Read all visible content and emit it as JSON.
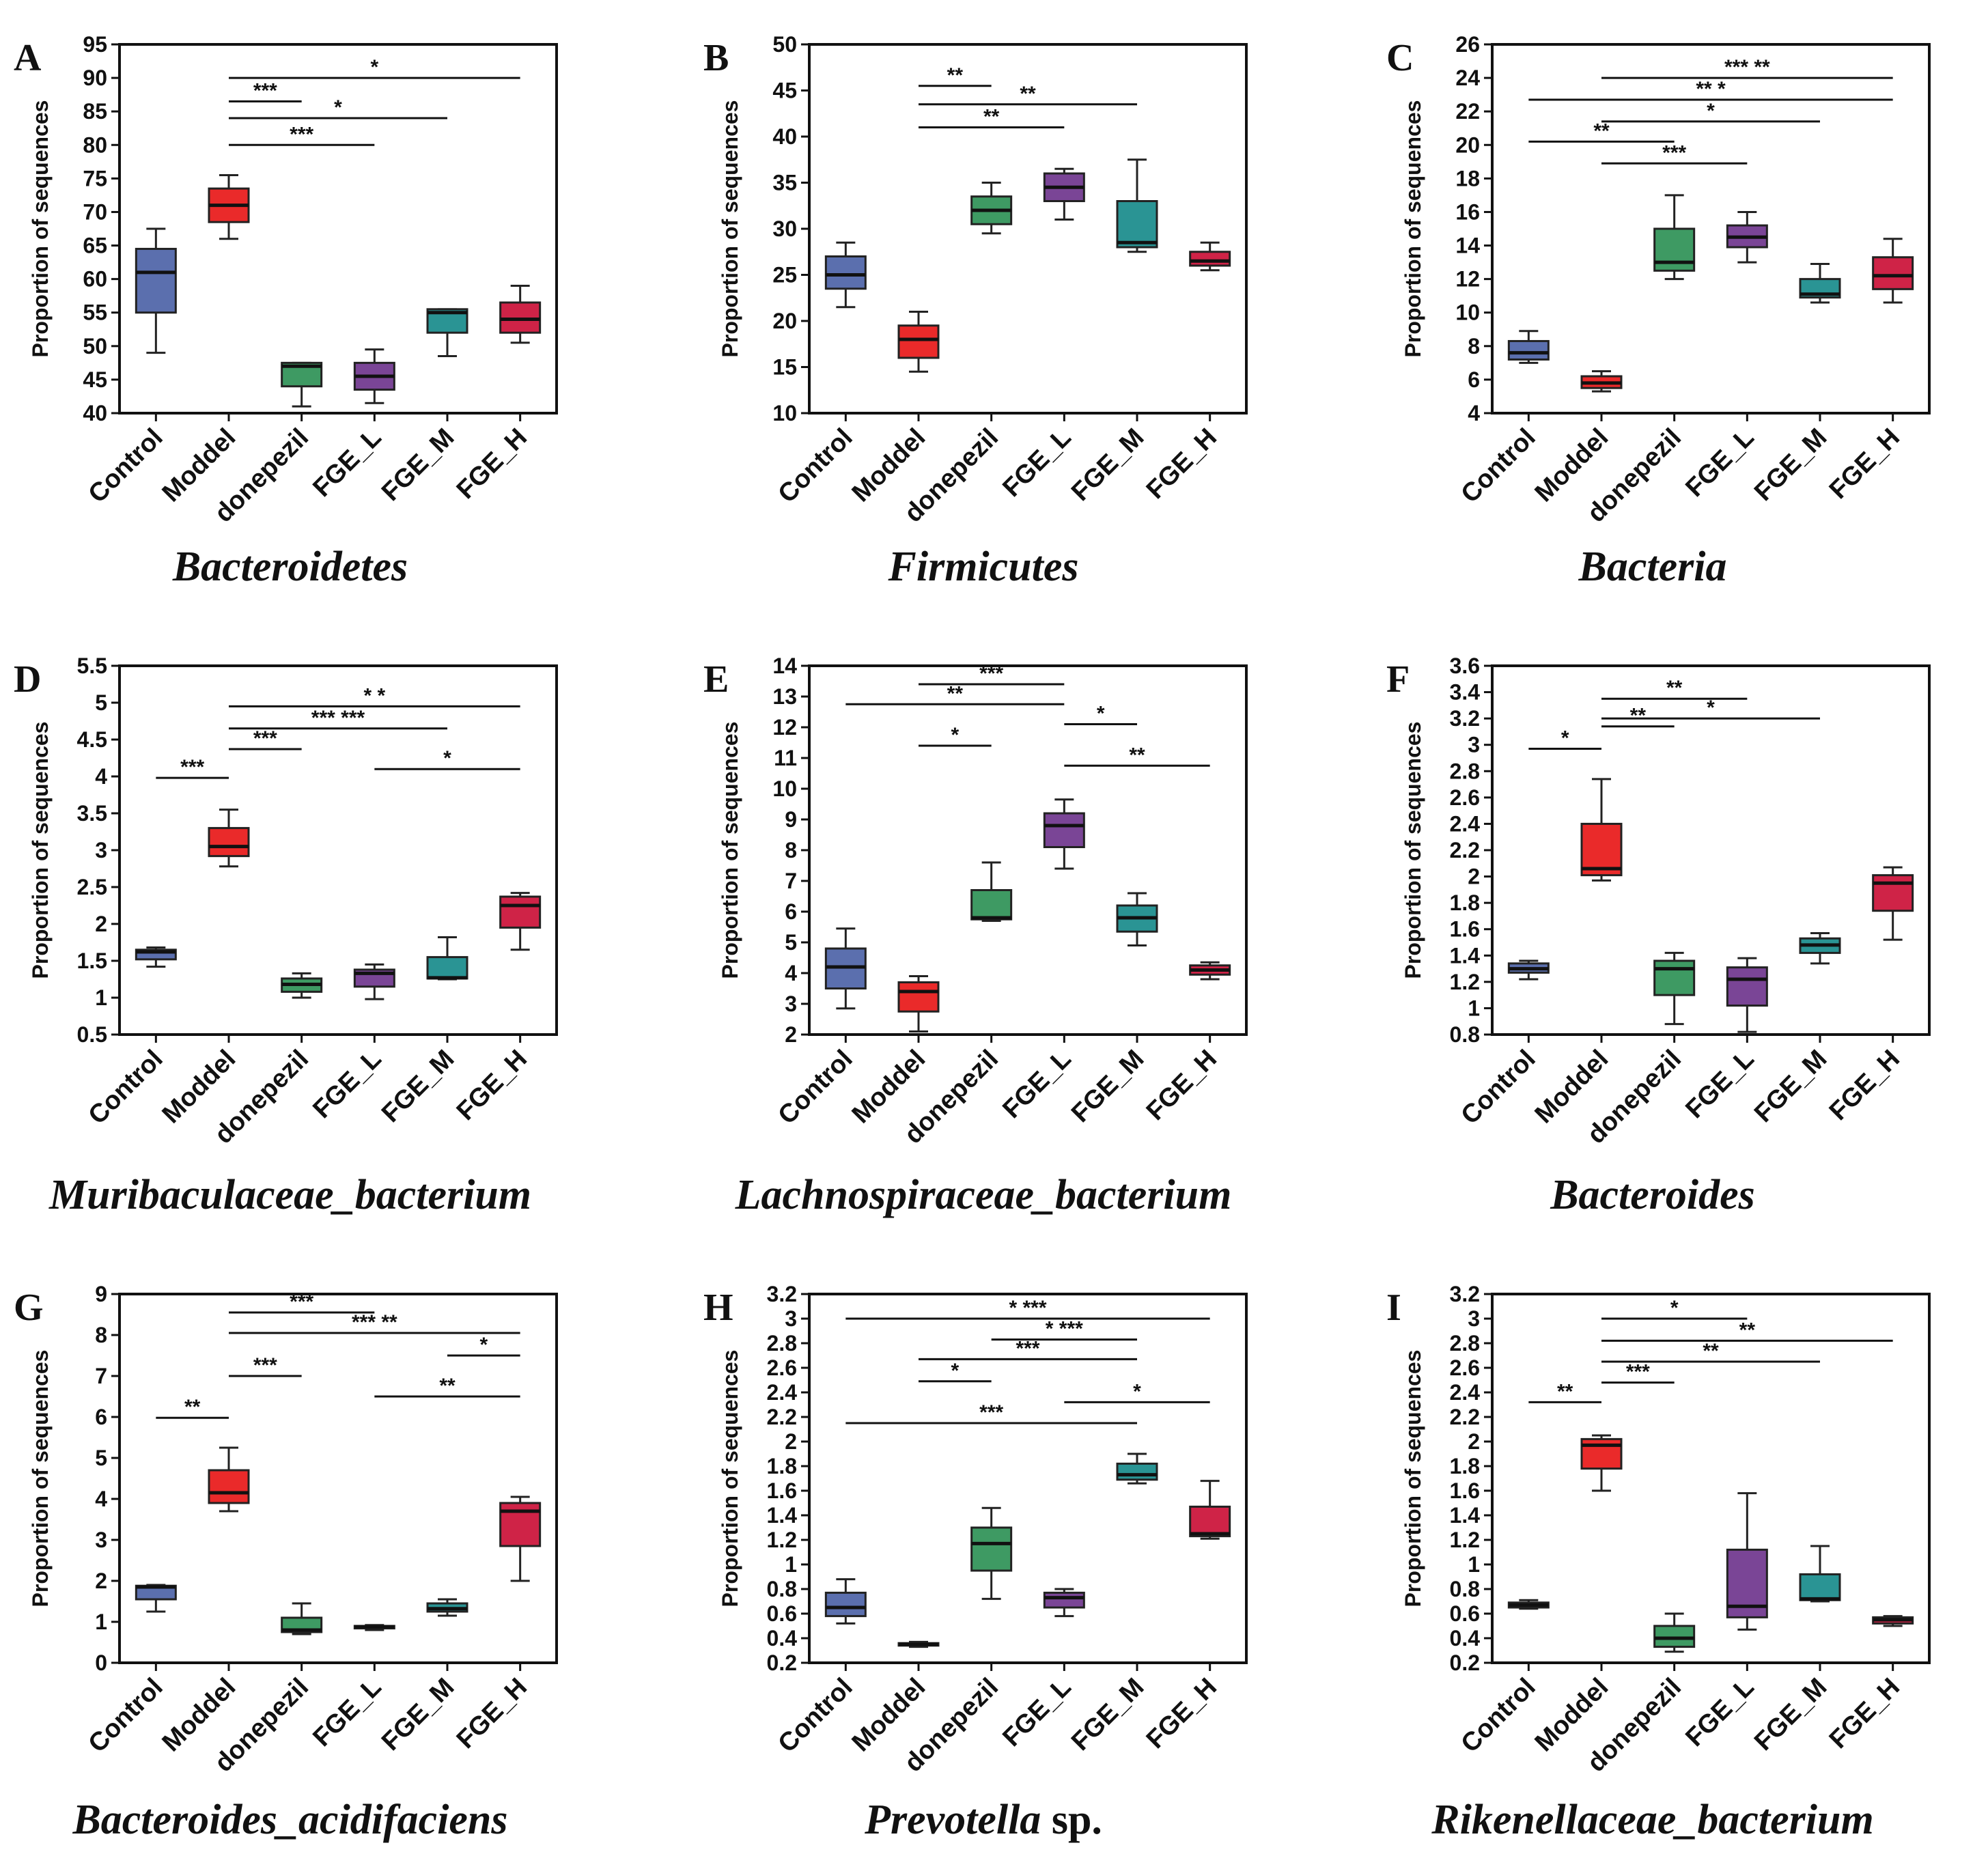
{
  "colors": {
    "Control": "#5b6fae",
    "Moddel": "#ea2a2a",
    "donepezil": "#3e9a63",
    "FGE_L": "#7a4596",
    "FGE_M": "#2a9494",
    "FGE_H": "#cf2347"
  },
  "chart_data": [
    {
      "type": "box",
      "panel_label": "A",
      "title": "Bacteroidetes",
      "ylabel": "Proportion of sequences",
      "ylim": [
        40,
        95
      ],
      "ticks": [
        40,
        45,
        50,
        55,
        60,
        65,
        70,
        75,
        80,
        85,
        90,
        95
      ],
      "categories": [
        "Control",
        "Moddel",
        "donepezil",
        "FGE_L",
        "FGE_M",
        "FGE_H"
      ],
      "boxes": [
        {
          "min": 49,
          "q1": 55,
          "median": 61,
          "q3": 64.5,
          "max": 67.5
        },
        {
          "min": 66,
          "q1": 68.5,
          "median": 71,
          "q3": 73.5,
          "max": 75.5
        },
        {
          "min": 41,
          "q1": 44,
          "median": 47,
          "q3": 47.5,
          "max": 47.5
        },
        {
          "min": 41.5,
          "q1": 43.5,
          "median": 45.5,
          "q3": 47.5,
          "max": 49.5
        },
        {
          "min": 48.5,
          "q1": 52,
          "median": 55,
          "q3": 55.5,
          "max": 55.5
        },
        {
          "min": 50.5,
          "q1": 52,
          "median": 54,
          "q3": 56.5,
          "max": 59
        }
      ],
      "significance": [
        {
          "from": 1,
          "to": 5,
          "y": 90,
          "label": "*"
        },
        {
          "from": 1,
          "to": 2,
          "y": 86.5,
          "label": "***"
        },
        {
          "from": 1,
          "to": 4,
          "y": 84,
          "label": "*"
        },
        {
          "from": 1,
          "to": 3,
          "y": 80,
          "label": "***"
        }
      ]
    },
    {
      "type": "box",
      "panel_label": "B",
      "title": "Firmicutes",
      "ylabel": "Proportion of sequences",
      "ylim": [
        10,
        50
      ],
      "ticks": [
        10,
        15,
        20,
        25,
        30,
        35,
        40,
        45,
        50
      ],
      "categories": [
        "Control",
        "Moddel",
        "donepezil",
        "FGE_L",
        "FGE_M",
        "FGE_H"
      ],
      "boxes": [
        {
          "min": 21.5,
          "q1": 23.5,
          "median": 25,
          "q3": 27,
          "max": 28.5
        },
        {
          "min": 14.5,
          "q1": 16,
          "median": 18,
          "q3": 19.5,
          "max": 21
        },
        {
          "min": 29.5,
          "q1": 30.5,
          "median": 32,
          "q3": 33.5,
          "max": 35
        },
        {
          "min": 31,
          "q1": 33,
          "median": 34.5,
          "q3": 36,
          "max": 36.5
        },
        {
          "min": 27.5,
          "q1": 28,
          "median": 28.5,
          "q3": 33,
          "max": 37.5
        },
        {
          "min": 25.5,
          "q1": 26,
          "median": 26.5,
          "q3": 27.5,
          "max": 28.5
        }
      ],
      "significance": [
        {
          "from": 1,
          "to": 2,
          "y": 45.5,
          "label": "**"
        },
        {
          "from": 1,
          "to": 4,
          "y": 43.5,
          "label": "**"
        },
        {
          "from": 1,
          "to": 3,
          "y": 41,
          "label": "**"
        }
      ]
    },
    {
      "type": "box",
      "panel_label": "C",
      "title": "Bacteria",
      "ylabel": "Proportion of sequences",
      "ylim": [
        4,
        26
      ],
      "ticks": [
        4,
        6,
        8,
        10,
        12,
        14,
        16,
        18,
        20,
        22,
        24,
        26
      ],
      "categories": [
        "Control",
        "Moddel",
        "donepezil",
        "FGE_L",
        "FGE_M",
        "FGE_H"
      ],
      "boxes": [
        {
          "min": 7,
          "q1": 7.2,
          "median": 7.6,
          "q3": 8.3,
          "max": 8.9
        },
        {
          "min": 5.3,
          "q1": 5.5,
          "median": 5.8,
          "q3": 6.2,
          "max": 6.5
        },
        {
          "min": 12,
          "q1": 12.5,
          "median": 13,
          "q3": 15,
          "max": 17
        },
        {
          "min": 13,
          "q1": 13.9,
          "median": 14.5,
          "q3": 15.2,
          "max": 16
        },
        {
          "min": 10.6,
          "q1": 10.9,
          "median": 11.1,
          "q3": 12,
          "max": 12.9
        },
        {
          "min": 10.6,
          "q1": 11.4,
          "median": 12.2,
          "q3": 13.3,
          "max": 14.4
        }
      ],
      "significance": [
        {
          "from": 1,
          "to": 5,
          "y": 24,
          "label": "***    **"
        },
        {
          "from": 0,
          "to": 5,
          "y": 22.7,
          "label": "**          *"
        },
        {
          "from": 1,
          "to": 4,
          "y": 21.4,
          "label": "*"
        },
        {
          "from": 0,
          "to": 2,
          "y": 20.2,
          "label": "**"
        },
        {
          "from": 1,
          "to": 3,
          "y": 18.9,
          "label": "***"
        }
      ]
    },
    {
      "type": "box",
      "panel_label": "D",
      "title": "Muribaculaceae_bacterium",
      "ylabel": "Proportion of sequences",
      "ylim": [
        0.5,
        5.5
      ],
      "ticks": [
        0.5,
        1,
        1.5,
        2,
        2.5,
        3,
        3.5,
        4,
        4.5,
        5,
        5.5
      ],
      "tick_labels": [
        "0.5",
        "1",
        "1.5",
        "2",
        "2.5",
        "3",
        "3.5",
        "4",
        "4.5",
        "5",
        "5.5"
      ],
      "categories": [
        "Control",
        "Moddel",
        "donepezil",
        "FGE_L",
        "FGE_M",
        "FGE_H"
      ],
      "boxes": [
        {
          "min": 1.42,
          "q1": 1.52,
          "median": 1.62,
          "q3": 1.65,
          "max": 1.68
        },
        {
          "min": 2.78,
          "q1": 2.92,
          "median": 3.05,
          "q3": 3.3,
          "max": 3.55
        },
        {
          "min": 1,
          "q1": 1.08,
          "median": 1.18,
          "q3": 1.26,
          "max": 1.33
        },
        {
          "min": 0.98,
          "q1": 1.15,
          "median": 1.33,
          "q3": 1.38,
          "max": 1.45
        },
        {
          "min": 1.25,
          "q1": 1.26,
          "median": 1.27,
          "q3": 1.55,
          "max": 1.82
        },
        {
          "min": 1.65,
          "q1": 1.95,
          "median": 2.25,
          "q3": 2.37,
          "max": 2.42
        }
      ],
      "significance": [
        {
          "from": 1,
          "to": 5,
          "y": 4.95,
          "label": "*     *"
        },
        {
          "from": 1,
          "to": 4,
          "y": 4.65,
          "label": "*** ***"
        },
        {
          "from": 1,
          "to": 2,
          "y": 4.37,
          "label": "***"
        },
        {
          "from": 3,
          "to": 5,
          "y": 4.1,
          "label": "*"
        },
        {
          "from": 0,
          "to": 1,
          "y": 3.98,
          "label": "***"
        }
      ]
    },
    {
      "type": "box",
      "panel_label": "E",
      "title": "Lachnospiraceae_bacterium",
      "ylabel": "Proportion of sequences",
      "ylim": [
        2,
        14
      ],
      "ticks": [
        2,
        3,
        4,
        5,
        6,
        7,
        8,
        9,
        10,
        11,
        12,
        13,
        14
      ],
      "categories": [
        "Control",
        "Moddel",
        "donepezil",
        "FGE_L",
        "FGE_M",
        "FGE_H"
      ],
      "boxes": [
        {
          "min": 2.85,
          "q1": 3.5,
          "median": 4.2,
          "q3": 4.8,
          "max": 5.45
        },
        {
          "min": 2.1,
          "q1": 2.75,
          "median": 3.4,
          "q3": 3.7,
          "max": 3.9
        },
        {
          "min": 5.7,
          "q1": 5.75,
          "median": 5.8,
          "q3": 6.7,
          "max": 7.6
        },
        {
          "min": 7.4,
          "q1": 8.1,
          "median": 8.8,
          "q3": 9.2,
          "max": 9.65
        },
        {
          "min": 4.9,
          "q1": 5.35,
          "median": 5.8,
          "q3": 6.2,
          "max": 6.6
        },
        {
          "min": 3.8,
          "q1": 3.95,
          "median": 4.1,
          "q3": 4.25,
          "max": 4.35
        }
      ],
      "significance": [
        {
          "from": 1,
          "to": 3,
          "y": 13.4,
          "label": "***"
        },
        {
          "from": 0,
          "to": 3,
          "y": 12.75,
          "label": "**"
        },
        {
          "from": 3,
          "to": 4,
          "y": 12.1,
          "label": "*"
        },
        {
          "from": 1,
          "to": 2,
          "y": 11.4,
          "label": "*"
        },
        {
          "from": 3,
          "to": 5,
          "y": 10.75,
          "label": "**"
        }
      ]
    },
    {
      "type": "box",
      "panel_label": "F",
      "title": "Bacteroides",
      "ylabel": "Proportion of sequences",
      "ylim": [
        0.8,
        3.6
      ],
      "ticks": [
        0.8,
        1,
        1.2,
        1.4,
        1.6,
        1.8,
        2,
        2.2,
        2.4,
        2.6,
        2.8,
        3,
        3.2,
        3.4,
        3.6
      ],
      "tick_labels": [
        "0.8",
        "1",
        "1.2",
        "1.4",
        "1.6",
        "1.8",
        "2",
        "2.2",
        "2.4",
        "2.6",
        "2.8",
        "3",
        "3.2",
        "3.4",
        "3.6"
      ],
      "categories": [
        "Control",
        "Moddel",
        "donepezil",
        "FGE_L",
        "FGE_M",
        "FGE_H"
      ],
      "boxes": [
        {
          "min": 1.22,
          "q1": 1.27,
          "median": 1.3,
          "q3": 1.34,
          "max": 1.36
        },
        {
          "min": 1.97,
          "q1": 2.01,
          "median": 2.06,
          "q3": 2.4,
          "max": 2.74
        },
        {
          "min": 0.88,
          "q1": 1.1,
          "median": 1.3,
          "q3": 1.36,
          "max": 1.42
        },
        {
          "min": 0.82,
          "q1": 1.02,
          "median": 1.22,
          "q3": 1.31,
          "max": 1.38
        },
        {
          "min": 1.34,
          "q1": 1.42,
          "median": 1.48,
          "q3": 1.53,
          "max": 1.57
        },
        {
          "min": 1.52,
          "q1": 1.74,
          "median": 1.95,
          "q3": 2.01,
          "max": 2.07
        }
      ],
      "significance": [
        {
          "from": 1,
          "to": 3,
          "y": 3.35,
          "label": "**"
        },
        {
          "from": 1,
          "to": 4,
          "y": 3.2,
          "label": "*"
        },
        {
          "from": 1,
          "to": 2,
          "y": 3.14,
          "label": "**"
        },
        {
          "from": 0,
          "to": 1,
          "y": 2.97,
          "label": "*"
        }
      ]
    },
    {
      "type": "box",
      "panel_label": "G",
      "title": "Bacteroides_acidifaciens",
      "ylabel": "Proportion of sequences",
      "ylim": [
        0,
        9
      ],
      "ticks": [
        0,
        1,
        2,
        3,
        4,
        5,
        6,
        7,
        8,
        9
      ],
      "categories": [
        "Control",
        "Moddel",
        "donepezil",
        "FGE_L",
        "FGE_M",
        "FGE_H"
      ],
      "boxes": [
        {
          "min": 1.25,
          "q1": 1.55,
          "median": 1.85,
          "q3": 1.88,
          "max": 1.9
        },
        {
          "min": 3.7,
          "q1": 3.9,
          "median": 4.15,
          "q3": 4.7,
          "max": 5.25
        },
        {
          "min": 0.7,
          "q1": 0.75,
          "median": 0.8,
          "q3": 1.1,
          "max": 1.45
        },
        {
          "min": 0.8,
          "q1": 0.84,
          "median": 0.88,
          "q3": 0.9,
          "max": 0.92
        },
        {
          "min": 1.15,
          "q1": 1.25,
          "median": 1.32,
          "q3": 1.45,
          "max": 1.55
        },
        {
          "min": 2,
          "q1": 2.85,
          "median": 3.7,
          "q3": 3.9,
          "max": 4.05
        }
      ],
      "significance": [
        {
          "from": 1,
          "to": 3,
          "y": 8.55,
          "label": "***"
        },
        {
          "from": 1,
          "to": 5,
          "y": 8.05,
          "label": "***          **"
        },
        {
          "from": 4,
          "to": 5,
          "y": 7.5,
          "label": "*"
        },
        {
          "from": 1,
          "to": 2,
          "y": 7,
          "label": "***"
        },
        {
          "from": 3,
          "to": 5,
          "y": 6.5,
          "label": "**"
        },
        {
          "from": 0,
          "to": 1,
          "y": 5.98,
          "label": "**"
        }
      ]
    },
    {
      "type": "box",
      "panel_label": "H",
      "title": "Prevotella",
      "title_suffix": "sp.",
      "ylabel": "Proportion of sequences",
      "ylim": [
        0.2,
        3.2
      ],
      "ticks": [
        0.2,
        0.4,
        0.6,
        0.8,
        1,
        1.2,
        1.4,
        1.6,
        1.8,
        2,
        2.2,
        2.4,
        2.6,
        2.8,
        3,
        3.2
      ],
      "tick_labels": [
        "0.2",
        "0.4",
        "0.6",
        "0.8",
        "1",
        "1.2",
        "1.4",
        "1.6",
        "1.8",
        "2",
        "2.2",
        "2.4",
        "2.6",
        "2.8",
        "3",
        "3.2"
      ],
      "categories": [
        "Control",
        "Moddel",
        "donepezil",
        "FGE_L",
        "FGE_M",
        "FGE_H"
      ],
      "boxes": [
        {
          "min": 0.52,
          "q1": 0.58,
          "median": 0.65,
          "q3": 0.77,
          "max": 0.88
        },
        {
          "min": 0.33,
          "q1": 0.34,
          "median": 0.35,
          "q3": 0.36,
          "max": 0.37
        },
        {
          "min": 0.72,
          "q1": 0.95,
          "median": 1.17,
          "q3": 1.3,
          "max": 1.46
        },
        {
          "min": 0.58,
          "q1": 0.65,
          "median": 0.73,
          "q3": 0.77,
          "max": 0.8
        },
        {
          "min": 1.66,
          "q1": 1.69,
          "median": 1.73,
          "q3": 1.82,
          "max": 1.9
        },
        {
          "min": 1.21,
          "q1": 1.23,
          "median": 1.25,
          "q3": 1.47,
          "max": 1.68
        }
      ],
      "significance": [
        {
          "from": 0,
          "to": 5,
          "y": 3.0,
          "label": "*   ***"
        },
        {
          "from": 2,
          "to": 4,
          "y": 2.83,
          "label": "*   ***"
        },
        {
          "from": 1,
          "to": 4,
          "y": 2.67,
          "label": "***"
        },
        {
          "from": 1,
          "to": 2,
          "y": 2.49,
          "label": "*"
        },
        {
          "from": 3,
          "to": 5,
          "y": 2.32,
          "label": "*"
        },
        {
          "from": 0,
          "to": 4,
          "y": 2.15,
          "label": "***"
        }
      ]
    },
    {
      "type": "box",
      "panel_label": "I",
      "title": "Rikenellaceae_bacterium",
      "ylabel": "Proportion of sequences",
      "ylim": [
        0.2,
        3.2
      ],
      "ticks": [
        0.2,
        0.4,
        0.6,
        0.8,
        1,
        1.2,
        1.4,
        1.6,
        1.8,
        2,
        2.2,
        2.4,
        2.6,
        2.8,
        3,
        3.2
      ],
      "tick_labels": [
        "0.2",
        "0.4",
        "0.6",
        "0.8",
        "1",
        "1.2",
        "1.4",
        "1.6",
        "1.8",
        "2",
        "2.2",
        "2.4",
        "2.6",
        "2.8",
        "3",
        "3.2"
      ],
      "categories": [
        "Control",
        "Moddel",
        "donepezil",
        "FGE_L",
        "FGE_M",
        "FGE_H"
      ],
      "boxes": [
        {
          "min": 0.64,
          "q1": 0.65,
          "median": 0.67,
          "q3": 0.69,
          "max": 0.71
        },
        {
          "min": 1.6,
          "q1": 1.78,
          "median": 1.97,
          "q3": 2.02,
          "max": 2.05
        },
        {
          "min": 0.29,
          "q1": 0.33,
          "median": 0.4,
          "q3": 0.5,
          "max": 0.6
        },
        {
          "min": 0.47,
          "q1": 0.57,
          "median": 0.66,
          "q3": 1.12,
          "max": 1.58
        },
        {
          "min": 0.7,
          "q1": 0.71,
          "median": 0.72,
          "q3": 0.92,
          "max": 1.15
        },
        {
          "min": 0.5,
          "q1": 0.52,
          "median": 0.55,
          "q3": 0.57,
          "max": 0.58
        }
      ],
      "significance": [
        {
          "from": 1,
          "to": 3,
          "y": 3.0,
          "label": "*"
        },
        {
          "from": 1,
          "to": 5,
          "y": 2.82,
          "label": "**"
        },
        {
          "from": 1,
          "to": 4,
          "y": 2.65,
          "label": "**"
        },
        {
          "from": 1,
          "to": 2,
          "y": 2.48,
          "label": "***"
        },
        {
          "from": 0,
          "to": 1,
          "y": 2.32,
          "label": "**"
        }
      ]
    }
  ]
}
